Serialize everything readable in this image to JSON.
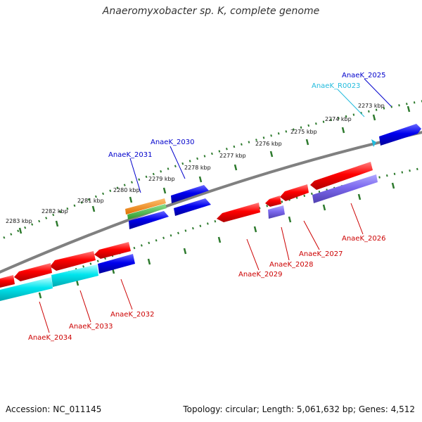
{
  "title": "Anaeromyxobacter sp. K, complete genome",
  "footer": {
    "accession": "Accession: NC_011145",
    "stats": "Topology: circular; Length: 5,061,632 bp; Genes: 4,512"
  },
  "colors": {
    "backbone": "#808080",
    "tick": "#2d7a2d",
    "cds": "#ff0000",
    "cds_blue": "#0000ee",
    "rrna": "#00e5ee",
    "trna": "#7b68ee",
    "misc_orange": "#ff8c00",
    "misc_green": "#3cb043",
    "label_red": "#cc0000",
    "label_blue": "#0000cc",
    "label_cyan": "#22bbdd"
  },
  "kbp_labels": [
    "2273 kbp",
    "2274 kbp",
    "2275 kbp",
    "2276 kbp",
    "2277 kbp",
    "2278 kbp",
    "2279 kbp",
    "2280 kbp",
    "2281 kbp",
    "2282 kbp",
    "2283 kbp"
  ],
  "gene_labels": [
    "AnaeK_2025",
    "AnaeK_R0023",
    "AnaeK_2026",
    "AnaeK_2027",
    "AnaeK_2028",
    "AnaeK_2029",
    "AnaeK_2030",
    "AnaeK_2031",
    "AnaeK_2032",
    "AnaeK_2033",
    "AnaeK_2034"
  ]
}
